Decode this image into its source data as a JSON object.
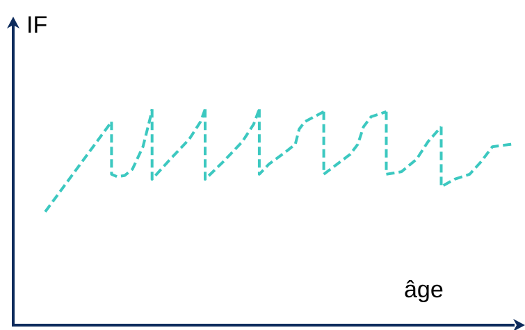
{
  "chart_data": {
    "type": "line",
    "title": "",
    "ylabel": "IF",
    "xlabel": "âge",
    "grid": false,
    "legend": "none",
    "xlim": [
      0,
      100
    ],
    "ylim": [
      0,
      100
    ],
    "colors": {
      "axis": "#0d2b5c",
      "series": "#3cc8c0"
    },
    "series": [
      {
        "segments": [
          {
            "x": [
              0,
              17.5
            ],
            "y": [
              32,
              68
            ]
          },
          {
            "x": [
              17.5,
              17.5,
              19,
              21,
              23,
              25.8,
              27.8,
              28.2
            ],
            "y": [
              68,
              47,
              46,
              46.5,
              49,
              58,
              70,
              73
            ]
          },
          {
            "x": [
              28.2,
              28.2,
              33,
              38,
              41,
              42.2
            ],
            "y": [
              73,
              45,
              53,
              61,
              68,
              73
            ]
          },
          {
            "x": [
              42.2,
              42.2,
              47,
              52,
              55,
              56.5
            ],
            "y": [
              73,
              45,
              52,
              60,
              67,
              73
            ]
          },
          {
            "x": [
              56.5,
              56.5,
              59,
              63.5,
              66,
              67,
              68.5,
              71,
              73.5
            ],
            "y": [
              73,
              47,
              51,
              56,
              59,
              65,
              68,
              70,
              72
            ]
          },
          {
            "x": [
              73.5,
              73.5,
              77,
              80.5,
              82.5,
              84,
              86,
              88,
              90
            ],
            "y": [
              72,
              47,
              51,
              55,
              59,
              66,
              70,
              71,
              72
            ]
          },
          {
            "x": [
              90,
              90,
              94,
              98,
              101,
              104.5
            ],
            "y": [
              72,
              47,
              48,
              53,
              60,
              66
            ]
          },
          {
            "x": [
              104.5,
              104.5,
              108,
              112,
              115,
              118,
              123
            ],
            "y": [
              66,
              42,
              45,
              47,
              52,
              58,
              59
            ]
          }
        ]
      }
    ]
  }
}
